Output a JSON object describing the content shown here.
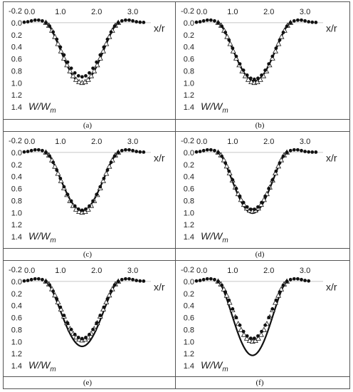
{
  "chart_data": [
    {
      "type": "scatter",
      "panel": "(a)",
      "caption": "(a)",
      "xlabel": "x/r",
      "ylabel": "W/W",
      "ylabel_sub": "m",
      "xlim": [
        0.0,
        3.5
      ],
      "ylim": [
        -0.2,
        1.4
      ],
      "y_inverted": true,
      "xticks": [
        "0.0",
        "1.0",
        "2.0",
        "3.0"
      ],
      "yticks": [
        "-0.2",
        "0.0",
        "0.2",
        "0.4",
        "0.6",
        "0.8",
        "1.0",
        "1.2",
        "1.4"
      ],
      "xtick_values": [
        0.0,
        1.0,
        2.0,
        3.0
      ],
      "ytick_values": [
        -0.2,
        0.0,
        0.2,
        0.4,
        0.6,
        0.8,
        1.0,
        1.2,
        1.4
      ],
      "line": {
        "x_start": 0.6,
        "x_end": 2.6,
        "peak": 1.0
      },
      "triangles": {
        "x_start": 0.6,
        "x_end": 2.6,
        "peak": 1.0
      },
      "dots": {
        "x_start": 0.0,
        "x_end": 3.3,
        "x_left": 0.6,
        "x_right": 2.6,
        "peak": 0.9
      }
    },
    {
      "type": "scatter",
      "panel": "(b)",
      "caption": "(b)",
      "xlabel": "x/r",
      "ylabel": "W/W",
      "ylabel_sub": "m",
      "xlim": [
        0.0,
        3.5
      ],
      "ylim": [
        -0.2,
        1.4
      ],
      "y_inverted": true,
      "xticks": [
        "0.0",
        "1.0",
        "2.0",
        "3.0"
      ],
      "yticks": [
        "-0.2",
        "0.0",
        "0.2",
        "0.4",
        "0.6",
        "0.8",
        "1.0",
        "1.2",
        "1.4"
      ],
      "xtick_values": [
        0.0,
        1.0,
        2.0,
        3.0
      ],
      "ytick_values": [
        -0.2,
        0.0,
        0.2,
        0.4,
        0.6,
        0.8,
        1.0,
        1.2,
        1.4
      ],
      "line": {
        "x_start": 0.6,
        "x_end": 2.6,
        "peak": 0.97
      },
      "triangles": {
        "x_start": 0.6,
        "x_end": 2.6,
        "peak": 1.0
      },
      "dots": {
        "x_start": 0.0,
        "x_end": 3.3,
        "x_left": 0.6,
        "x_right": 2.6,
        "peak": 0.94
      }
    },
    {
      "type": "scatter",
      "panel": "(c)",
      "caption": "(c)",
      "xlabel": "x/r",
      "ylabel": "W/W",
      "ylabel_sub": "m",
      "xlim": [
        0.0,
        3.5
      ],
      "ylim": [
        -0.2,
        1.4
      ],
      "y_inverted": true,
      "xticks": [
        "0.0",
        "1.0",
        "2.0",
        "3.0"
      ],
      "yticks": [
        "-0.2",
        "0.0",
        "0.2",
        "0.4",
        "0.6",
        "0.8",
        "1.0",
        "1.2",
        "1.4"
      ],
      "xtick_values": [
        0.0,
        1.0,
        2.0,
        3.0
      ],
      "ytick_values": [
        -0.2,
        0.0,
        0.2,
        0.4,
        0.6,
        0.8,
        1.0,
        1.2,
        1.4
      ],
      "line": {
        "x_start": 0.6,
        "x_end": 2.6,
        "peak": 0.97
      },
      "triangles": {
        "x_start": 0.6,
        "x_end": 2.6,
        "peak": 1.0
      },
      "dots": {
        "x_start": 0.0,
        "x_end": 3.3,
        "x_left": 0.6,
        "x_right": 2.6,
        "peak": 0.96
      }
    },
    {
      "type": "scatter",
      "panel": "(d)",
      "caption": "(d)",
      "xlabel": "x/r",
      "ylabel": "W/W",
      "ylabel_sub": "m",
      "xlim": [
        0.0,
        3.5
      ],
      "ylim": [
        -0.2,
        1.4
      ],
      "y_inverted": true,
      "xticks": [
        "0.0",
        "1.0",
        "2.0",
        "3.0"
      ],
      "yticks": [
        "-0.2",
        "0.0",
        "0.2",
        "0.4",
        "0.6",
        "0.8",
        "1.0",
        "1.2",
        "1.4"
      ],
      "xtick_values": [
        0.0,
        1.0,
        2.0,
        3.0
      ],
      "ytick_values": [
        -0.2,
        0.0,
        0.2,
        0.4,
        0.6,
        0.8,
        1.0,
        1.2,
        1.4
      ],
      "line": {
        "x_start": 0.6,
        "x_end": 2.5,
        "peak": 1.01
      },
      "triangles": {
        "x_start": 0.6,
        "x_end": 2.5,
        "peak": 0.98
      },
      "dots": {
        "x_start": 0.0,
        "x_end": 3.3,
        "x_left": 0.6,
        "x_right": 2.5,
        "peak": 0.95
      }
    },
    {
      "type": "scatter",
      "panel": "(e)",
      "caption": "(e)",
      "xlabel": "x/r",
      "ylabel": "W/W",
      "ylabel_sub": "m",
      "xlim": [
        0.0,
        3.5
      ],
      "ylim": [
        -0.2,
        1.4
      ],
      "y_inverted": true,
      "xticks": [
        "0.0",
        "1.0",
        "2.0",
        "3.0"
      ],
      "yticks": [
        "-0.2",
        "0.0",
        "0.2",
        "0.4",
        "0.6",
        "0.8",
        "1.0",
        "1.2",
        "1.4"
      ],
      "xtick_values": [
        0.0,
        1.0,
        2.0,
        3.0
      ],
      "ytick_values": [
        -0.2,
        0.0,
        0.2,
        0.4,
        0.6,
        0.8,
        1.0,
        1.2,
        1.4
      ],
      "line": {
        "x_start": 0.6,
        "x_end": 2.6,
        "peak": 1.08
      },
      "triangles": {
        "x_start": 0.6,
        "x_end": 2.6,
        "peak": 0.98
      },
      "dots": {
        "x_start": 0.0,
        "x_end": 3.3,
        "x_left": 0.6,
        "x_right": 2.6,
        "peak": 0.95
      }
    },
    {
      "type": "scatter",
      "panel": "(f)",
      "caption": "(f)",
      "xlabel": "x/r",
      "ylabel": "W/W",
      "ylabel_sub": "m",
      "xlim": [
        0.0,
        3.5
      ],
      "ylim": [
        -0.2,
        1.4
      ],
      "y_inverted": true,
      "xticks": [
        "0.0",
        "1.0",
        "2.0",
        "3.0"
      ],
      "yticks": [
        "-0.2",
        "0.0",
        "0.2",
        "0.4",
        "0.6",
        "0.8",
        "1.0",
        "1.2",
        "1.4"
      ],
      "xtick_values": [
        0.0,
        1.0,
        2.0,
        3.0
      ],
      "ytick_values": [
        -0.2,
        0.0,
        0.2,
        0.4,
        0.6,
        0.8,
        1.0,
        1.2,
        1.4
      ],
      "line": {
        "x_start": 0.6,
        "x_end": 2.5,
        "peak": 1.23
      },
      "triangles": {
        "x_start": 0.6,
        "x_end": 2.5,
        "peak": 1.0
      },
      "dots": {
        "x_start": 0.0,
        "x_end": 3.1,
        "x_left": 0.6,
        "x_right": 2.5,
        "peak": 0.95
      }
    }
  ]
}
